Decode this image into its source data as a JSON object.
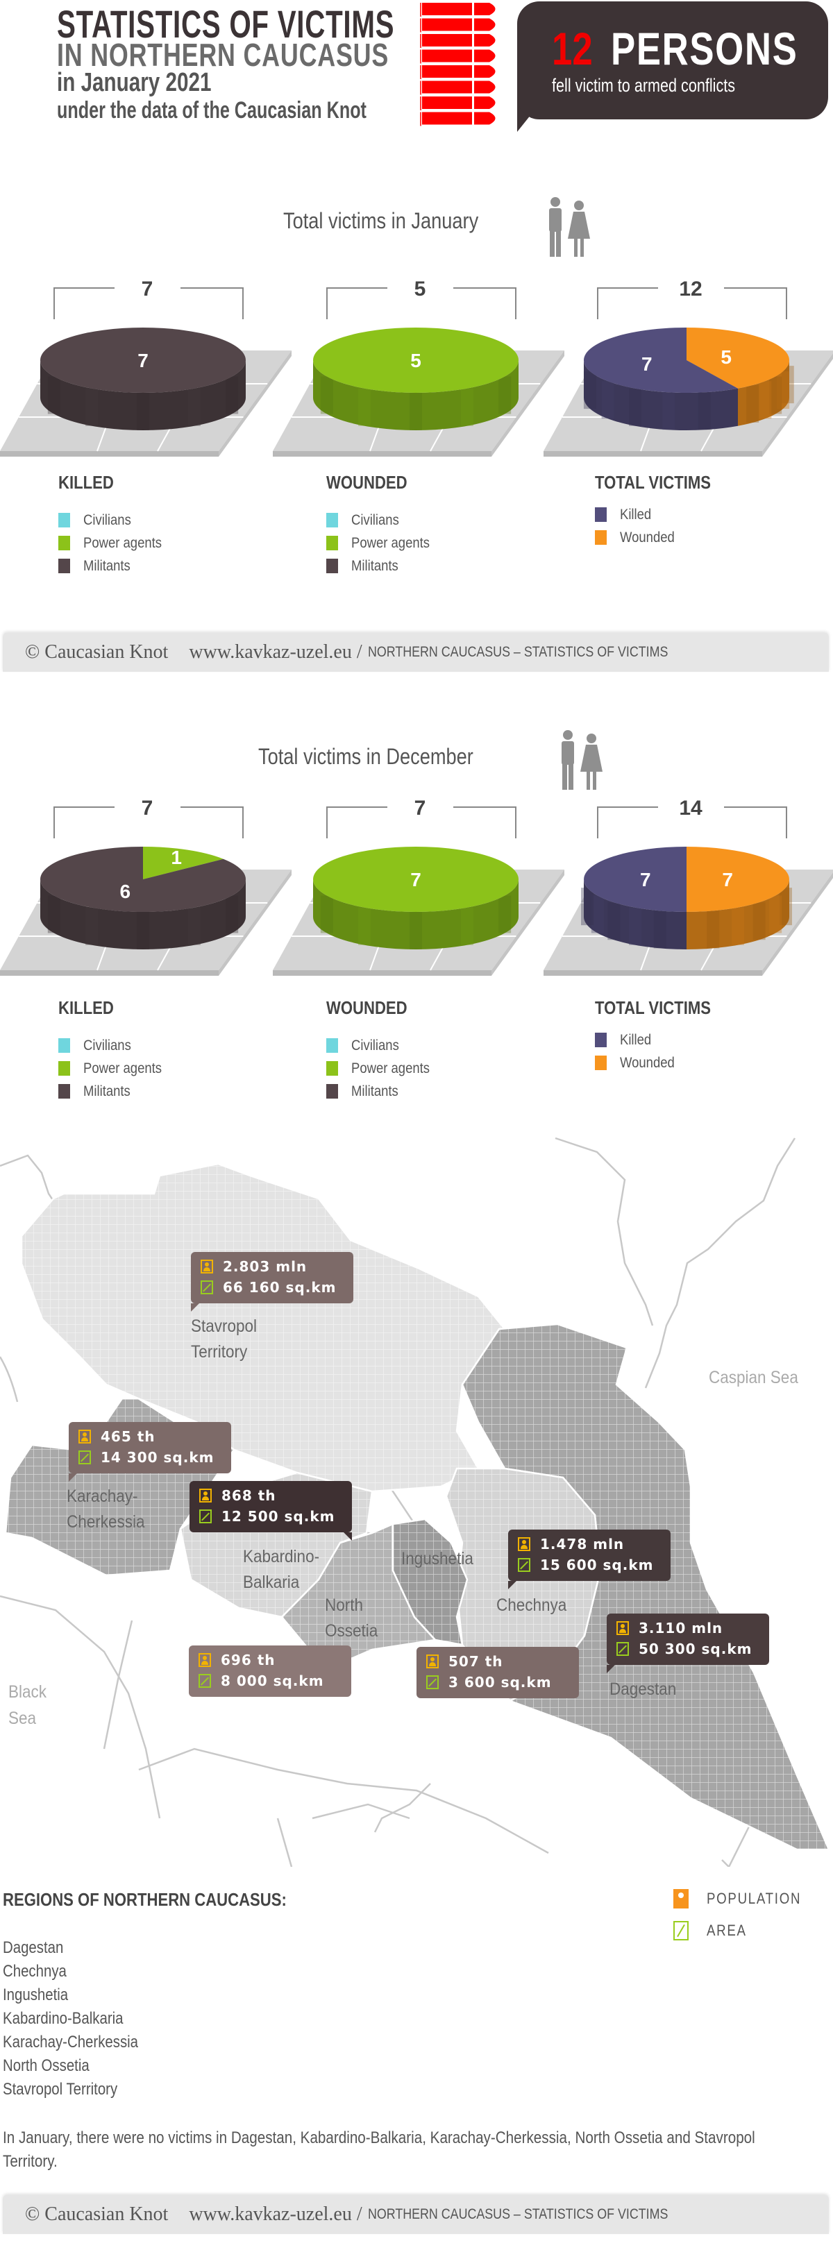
{
  "header": {
    "title_line1": "STATISTICS OF VICTIMS",
    "title_line2": "IN NORTHERN CAUCASUS",
    "title_line3": "in January 2021",
    "title_line4": "under the data of the Caucasian Knot",
    "bubble_number": "12",
    "bubble_word": "PERSONS",
    "bubble_sub": "fell victim to armed conflicts",
    "accent_color": "#f00000"
  },
  "sections": {
    "january": {
      "title": "Total victims in January",
      "icon": "man-woman-icon"
    },
    "december": {
      "title": "Total victims in December",
      "icon": "man-woman-icon"
    }
  },
  "chart_data": [
    {
      "type": "pie",
      "section": "january",
      "title": "KILLED",
      "total": "7",
      "slices": [
        {
          "label": "Civilians",
          "value": 0,
          "color": "#6fd6de"
        },
        {
          "label": "Power agents",
          "value": 0,
          "color": "#8cc21a"
        },
        {
          "label": "Militants",
          "value": 7,
          "color": "#54464a"
        }
      ]
    },
    {
      "type": "pie",
      "section": "january",
      "title": "WOUNDED",
      "total": "5",
      "slices": [
        {
          "label": "Civilians",
          "value": 0,
          "color": "#6fd6de"
        },
        {
          "label": "Power agents",
          "value": 5,
          "color": "#8cc21a"
        },
        {
          "label": "Militants",
          "value": 0,
          "color": "#54464a"
        }
      ]
    },
    {
      "type": "pie",
      "section": "january",
      "title": "TOTAL VICTIMS",
      "total": "12",
      "slices": [
        {
          "label": "Wounded",
          "value": 5,
          "color": "#f7941d"
        },
        {
          "label": "Killed",
          "value": 7,
          "color": "#534e7c"
        }
      ]
    },
    {
      "type": "pie",
      "section": "december",
      "title": "KILLED",
      "total": "7",
      "slices": [
        {
          "label": "Civilians",
          "value": 0,
          "color": "#6fd6de"
        },
        {
          "label": "Power agents",
          "value": 1,
          "color": "#8cc21a"
        },
        {
          "label": "Militants",
          "value": 6,
          "color": "#54464a"
        }
      ]
    },
    {
      "type": "pie",
      "section": "december",
      "title": "WOUNDED",
      "total": "7",
      "slices": [
        {
          "label": "Civilians",
          "value": 0,
          "color": "#6fd6de"
        },
        {
          "label": "Power agents",
          "value": 7,
          "color": "#8cc21a"
        },
        {
          "label": "Militants",
          "value": 0,
          "color": "#54464a"
        }
      ]
    },
    {
      "type": "pie",
      "section": "december",
      "title": "TOTAL VICTIMS",
      "total": "14",
      "slices": [
        {
          "label": "Wounded",
          "value": 7,
          "color": "#f7941d"
        },
        {
          "label": "Killed",
          "value": 7,
          "color": "#534e7c"
        }
      ]
    }
  ],
  "footer": {
    "copyright": "© Caucasian Knot",
    "url": "www.kavkaz-uzel.eu /",
    "caption": "NORTHERN CAUCASUS – STATISTICS OF VICTIMS"
  },
  "map": {
    "regions": {
      "stavropol": {
        "label1": "Stavropol",
        "label2": "Territory",
        "population": "2.803 mln",
        "area": "66 160 sq.km"
      },
      "karachay": {
        "label1": "Karachay-",
        "label2": "Cherkessia",
        "population": "465 th",
        "area": "14 300 sq.km"
      },
      "kabardino": {
        "label1": "Kabardino-",
        "label2": "Balkaria",
        "population": "868 th",
        "area": "12 500 sq.km"
      },
      "ossetia": {
        "label1": "North",
        "label2": "Ossetia",
        "population": "696 th",
        "area": "8 000 sq.km"
      },
      "ingushetia": {
        "label1": "Ingushetia",
        "population": "507 th",
        "area": "3 600 sq.km"
      },
      "chechnya": {
        "label1": "Chechnya",
        "population": "1.478 mln",
        "area": "15 600 sq.km"
      },
      "dagestan": {
        "label1": "Dagestan",
        "population": "3.110 mln",
        "area": "50 300 sq.km"
      }
    },
    "seas": {
      "caspian": "Caspian Sea",
      "black1": "Black",
      "black2": "Sea"
    }
  },
  "regions_section": {
    "heading": "REGIONS OF NORTHERN CAUCASUS:",
    "items": [
      "Dagestan",
      "Chechnya",
      "Ingushetia",
      "Kabardino-Balkaria",
      "Karachay-Cherkessia",
      "North Ossetia",
      "Stavropol Territory"
    ],
    "legend_population": "POPULATION",
    "legend_area": "AREA",
    "note": "In January, there were no victims in Dagestan, Kabardino-Balkaria, Karachay-Cherkessia, North Ossetia and Stavropol Territory."
  }
}
